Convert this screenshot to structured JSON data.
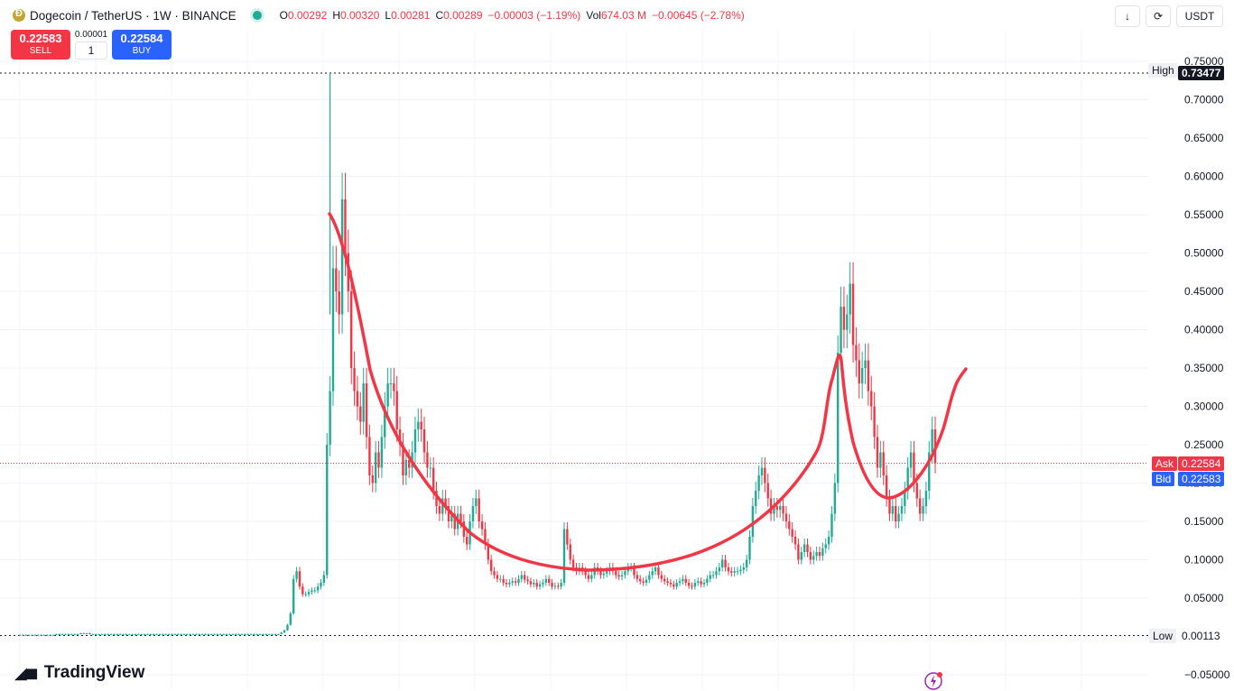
{
  "header": {
    "symbol": "Dogecoin / TetherUS · 1W · BINANCE",
    "ohlc": [
      {
        "label": "O",
        "value": "0.00292"
      },
      {
        "label": "H",
        "value": "0.00320"
      },
      {
        "label": "L",
        "value": "0.00281"
      },
      {
        "label": "C",
        "value": "0.00289"
      },
      {
        "label": "",
        "value": "−0.00003 (−1.19%)"
      },
      {
        "label": "Vol",
        "value": "674.03 M"
      },
      {
        "label": "",
        "value": "−0.00645 (−2.78%)"
      }
    ],
    "currency": "USDT"
  },
  "trade": {
    "sell_price": "0.22583",
    "sell_label": "SELL",
    "qty_step": "0.00001",
    "qty_value": "1",
    "buy_price": "0.22584",
    "buy_label": "BUY"
  },
  "price_scale": {
    "high_label": "High",
    "high_value": "0.73477",
    "low_label": "Low",
    "low_value": "0.00113",
    "ask_label": "Ask",
    "ask_value": "0.22584",
    "bid_label": "Bid",
    "bid_value": "0.22583"
  },
  "brand": {
    "name": "TradingView"
  },
  "colors": {
    "up": "#22ab94",
    "down": "#f23645",
    "drawing": "#f23645",
    "accent": "#2962ff"
  },
  "chart_data": {
    "type": "candlestick",
    "title": "Dogecoin / TetherUS · 1W · BINANCE",
    "ylim": [
      -0.05,
      0.75
    ],
    "y_ticks": [
      "0.75000",
      "0.70000",
      "0.65000",
      "0.60000",
      "0.55000",
      "0.50000",
      "0.45000",
      "0.40000",
      "0.35000",
      "0.30000",
      "0.25000",
      "0.20000",
      "0.15000",
      "0.10000",
      "0.05000",
      "-0.05000"
    ],
    "grid": true,
    "series": [
      {
        "values": [
          0.002,
          0.002,
          0.002,
          0.002,
          0.002,
          0.002,
          0.002,
          0.002,
          0.002,
          0.002,
          0.002,
          0.002,
          0.003,
          0.003,
          0.003,
          0.003,
          0.003,
          0.003,
          0.003,
          0.003,
          0.004,
          0.004,
          0.004,
          0.003,
          0.003,
          0.003,
          0.003,
          0.003,
          0.003,
          0.003,
          0.003,
          0.003,
          0.003,
          0.003,
          0.003,
          0.003,
          0.003,
          0.003,
          0.003,
          0.003,
          0.003,
          0.003,
          0.003,
          0.003,
          0.003,
          0.003,
          0.003,
          0.003,
          0.003,
          0.003,
          0.003,
          0.003,
          0.003,
          0.003,
          0.003,
          0.003,
          0.003,
          0.003,
          0.003,
          0.003,
          0.003,
          0.003,
          0.003,
          0.003,
          0.003,
          0.003,
          0.003,
          0.003,
          0.003,
          0.003,
          0.003,
          0.003,
          0.003,
          0.003,
          0.003,
          0.003,
          0.003,
          0.003,
          0.003,
          0.003,
          0.003,
          0.003,
          0.003,
          0.003,
          0.003,
          0.003,
          0.005,
          0.008,
          0.015,
          0.03,
          0.075,
          0.085,
          0.065,
          0.055,
          0.055,
          0.058,
          0.06,
          0.06,
          0.065,
          0.07,
          0.08,
          0.25,
          0.32,
          0.48,
          0.45,
          0.42,
          0.57,
          0.5,
          0.45,
          0.35,
          0.32,
          0.3,
          0.28,
          0.33,
          0.26,
          0.21,
          0.2,
          0.24,
          0.22,
          0.26,
          0.3,
          0.33,
          0.33,
          0.32,
          0.27,
          0.25,
          0.21,
          0.23,
          0.22,
          0.24,
          0.27,
          0.28,
          0.27,
          0.24,
          0.22,
          0.22,
          0.19,
          0.17,
          0.16,
          0.18,
          0.17,
          0.15,
          0.16,
          0.14,
          0.16,
          0.15,
          0.13,
          0.12,
          0.15,
          0.17,
          0.18,
          0.15,
          0.14,
          0.12,
          0.1,
          0.085,
          0.08,
          0.075,
          0.075,
          0.07,
          0.068,
          0.07,
          0.072,
          0.07,
          0.075,
          0.08,
          0.074,
          0.072,
          0.068,
          0.07,
          0.065,
          0.068,
          0.07,
          0.075,
          0.07,
          0.065,
          0.066,
          0.065,
          0.07,
          0.14,
          0.12,
          0.1,
          0.09,
          0.085,
          0.09,
          0.085,
          0.08,
          0.075,
          0.08,
          0.09,
          0.085,
          0.08,
          0.082,
          0.085,
          0.09,
          0.085,
          0.08,
          0.078,
          0.08,
          0.085,
          0.09,
          0.09,
          0.08,
          0.075,
          0.072,
          0.07,
          0.074,
          0.08,
          0.085,
          0.09,
          0.08,
          0.075,
          0.072,
          0.07,
          0.068,
          0.065,
          0.07,
          0.072,
          0.075,
          0.07,
          0.066,
          0.065,
          0.07,
          0.072,
          0.068,
          0.07,
          0.075,
          0.08,
          0.08,
          0.085,
          0.09,
          0.1,
          0.09,
          0.085,
          0.083,
          0.085,
          0.085,
          0.087,
          0.09,
          0.1,
          0.13,
          0.17,
          0.19,
          0.21,
          0.22,
          0.2,
          0.18,
          0.16,
          0.17,
          0.165,
          0.17,
          0.16,
          0.15,
          0.14,
          0.13,
          0.12,
          0.1,
          0.11,
          0.12,
          0.11,
          0.1,
          0.105,
          0.11,
          0.105,
          0.115,
          0.12,
          0.13,
          0.16,
          0.2,
          0.37,
          0.43,
          0.4,
          0.42,
          0.46,
          0.38,
          0.36,
          0.33,
          0.35,
          0.36,
          0.32,
          0.3,
          0.26,
          0.22,
          0.24,
          0.21,
          0.18,
          0.16,
          0.17,
          0.15,
          0.16,
          0.17,
          0.19,
          0.22,
          0.24,
          0.2,
          0.18,
          0.16,
          0.17,
          0.19,
          0.24,
          0.27,
          0.226
        ]
      }
    ]
  }
}
